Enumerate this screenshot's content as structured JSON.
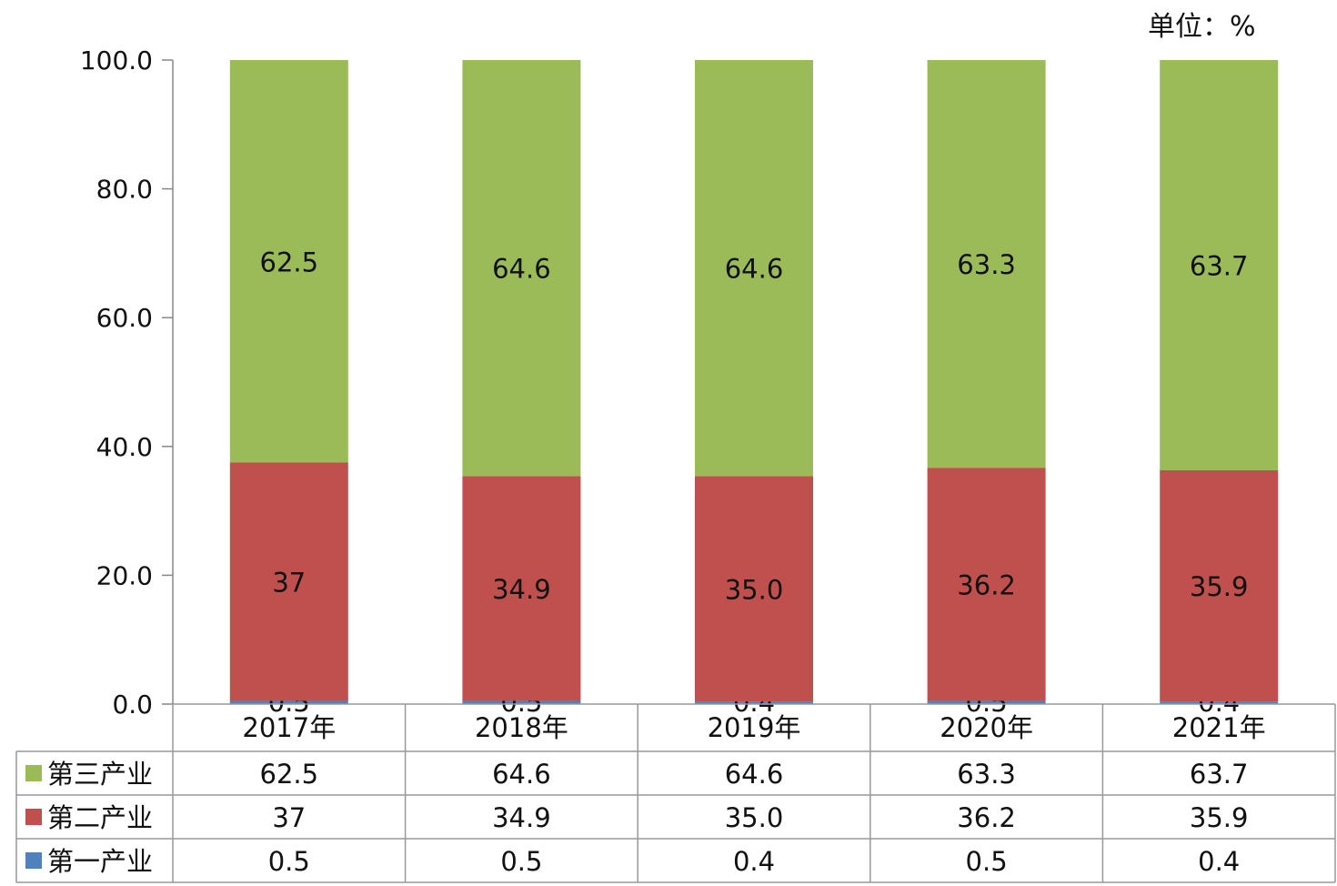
{
  "unit_label": "单位：%",
  "chart_data": {
    "type": "bar",
    "stacked": true,
    "categories": [
      "2017年",
      "2018年",
      "2019年",
      "2020年",
      "2021年"
    ],
    "ylim": [
      0,
      100
    ],
    "yticks": [
      0,
      20,
      40,
      60,
      80,
      100
    ],
    "ytick_labels": [
      "0.0",
      "20.0",
      "40.0",
      "60.0",
      "80.0",
      "100.0"
    ],
    "series": [
      {
        "name": "第一产业",
        "values": [
          0.5,
          0.5,
          0.4,
          0.5,
          0.4
        ],
        "labels": [
          "0.5",
          "0.5",
          "0.4",
          "0.5",
          "0.4"
        ],
        "color": "#4f81bd"
      },
      {
        "name": "第二产业",
        "values": [
          37,
          34.9,
          35.0,
          36.2,
          35.9
        ],
        "labels": [
          "37",
          "34.9",
          "35.0",
          "36.2",
          "35.9"
        ],
        "color": "#c0504d"
      },
      {
        "name": "第三产业",
        "values": [
          62.5,
          64.6,
          64.6,
          63.3,
          63.7
        ],
        "labels": [
          "62.5",
          "64.6",
          "64.6",
          "63.3",
          "63.7"
        ],
        "color": "#9bbb59"
      }
    ],
    "table_row_order": [
      "第三产业",
      "第二产业",
      "第一产业"
    ],
    "data_table": true
  }
}
